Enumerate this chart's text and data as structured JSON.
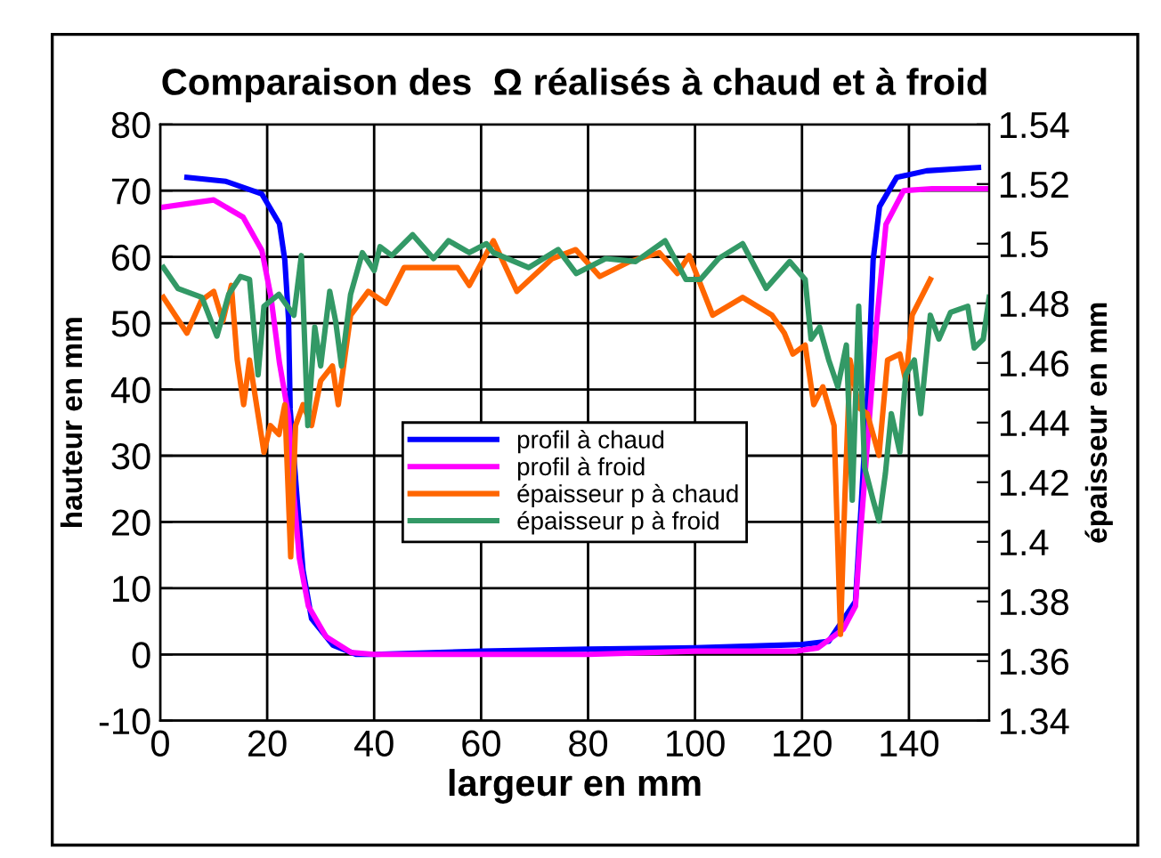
{
  "chart_data": {
    "type": "line",
    "title": "Comparaison des  Ω réalisés à chaud et à froid",
    "xlabel": "largeur en mm",
    "ylabel": "hauteur en mm",
    "y2label": "épaisseur en mm",
    "xlim": [
      0,
      155
    ],
    "xticks": [
      0,
      20,
      40,
      60,
      80,
      100,
      120,
      140
    ],
    "ylim": [
      -10,
      80
    ],
    "yticks": [
      -10,
      0,
      10,
      20,
      30,
      40,
      50,
      60,
      70,
      80
    ],
    "y2lim": [
      1.34,
      1.54
    ],
    "y2ticks": [
      1.34,
      1.36,
      1.38,
      1.4,
      1.42,
      1.44,
      1.46,
      1.48,
      1.5,
      1.52,
      1.54
    ],
    "grid": true,
    "legend": "center",
    "marker": "none",
    "line_style": "solid",
    "series": [
      {
        "name": "profil à chaud",
        "color": "#0000ff",
        "x": [
          5,
          12.3,
          19,
          22.3,
          23.3,
          24,
          24.3,
          25.6,
          26.7,
          28.3,
          32.3,
          36.7,
          40,
          60,
          80,
          100,
          120,
          125,
          130,
          131,
          132.3,
          133.3,
          134.5,
          137.7,
          143.3,
          153
        ],
        "values": [
          72,
          71.4,
          69.5,
          65,
          59.5,
          50.5,
          37,
          23.5,
          12.7,
          5.4,
          1.4,
          0,
          0,
          0.5,
          0.8,
          1,
          1.5,
          2,
          8,
          21.6,
          39.7,
          59.5,
          67.6,
          72,
          73,
          73.5
        ]
      },
      {
        "name": "profil à froid",
        "color": "#ff00ff",
        "x": [
          0.5,
          10,
          15.5,
          19,
          20.7,
          22.3,
          24,
          25,
          26,
          27.7,
          31,
          35.7,
          40,
          60,
          80,
          100,
          119,
          123,
          127.7,
          130,
          131,
          132.3,
          134,
          135.7,
          139,
          144.3,
          155
        ],
        "values": [
          67.5,
          68.6,
          66,
          61,
          54,
          44,
          36,
          24,
          14.6,
          7.3,
          2.7,
          0.3,
          0,
          0,
          0,
          0.5,
          0.5,
          1,
          3.8,
          7.3,
          19,
          32.4,
          50.5,
          64.9,
          70,
          70.3,
          70.3
        ]
      },
      {
        "name": "épaisseur p à chaud",
        "color": "#ff6600",
        "axis": "y2",
        "x": [
          0.6,
          5,
          7.7,
          10,
          11.7,
          13.3,
          14.4,
          15.6,
          16.7,
          19.4,
          20.6,
          22.2,
          23.3,
          24.4,
          25.3,
          26.7,
          28.3,
          30,
          32.2,
          33.3,
          35.6,
          38.9,
          42.2,
          45.6,
          50,
          55.6,
          57.8,
          62.3,
          66.7,
          73.3,
          77.7,
          82.2,
          87.8,
          93.3,
          96.7,
          98.9,
          103.3,
          108.9,
          114.4,
          116.7,
          118.3,
          120.6,
          122.2,
          123.9,
          126,
          127.2,
          128,
          129,
          130.6,
          132.2,
          134.4,
          136,
          138.3,
          139.4,
          140.6,
          144
        ],
        "values": [
          1.482,
          1.47,
          1.481,
          1.484,
          1.474,
          1.486,
          1.461,
          1.446,
          1.461,
          1.43,
          1.439,
          1.436,
          1.446,
          1.395,
          1.439,
          1.446,
          1.439,
          1.454,
          1.459,
          1.446,
          1.476,
          1.484,
          1.48,
          1.492,
          1.492,
          1.492,
          1.486,
          1.501,
          1.484,
          1.495,
          1.498,
          1.489,
          1.494,
          1.497,
          1.49,
          1.496,
          1.476,
          1.482,
          1.476,
          1.47,
          1.463,
          1.466,
          1.446,
          1.452,
          1.439,
          1.369,
          1.414,
          1.461,
          1.445,
          1.443,
          1.429,
          1.461,
          1.463,
          1.454,
          1.476,
          1.488
        ]
      },
      {
        "name": "épaisseur p à froid",
        "color": "#339966",
        "axis": "y2",
        "x": [
          0.6,
          3.3,
          7.8,
          10.6,
          12.8,
          15,
          16.7,
          18.3,
          19.4,
          22.2,
          25,
          26.4,
          27.6,
          28.9,
          30,
          31.7,
          32.8,
          33.9,
          35.6,
          37.8,
          40,
          41.1,
          43.3,
          47.2,
          51.1,
          53.9,
          57.8,
          61,
          62.3,
          68.9,
          74.4,
          77.8,
          83.3,
          88.9,
          94.4,
          98.3,
          101,
          104.4,
          108.9,
          113.3,
          117.7,
          120.6,
          121.7,
          123.3,
          125,
          126.7,
          128.3,
          129.4,
          130.6,
          131.7,
          133.3,
          134.4,
          135.6,
          136.7,
          138.3,
          139.4,
          141,
          142.2,
          144,
          145.6,
          147.8,
          151,
          152.2,
          153.9,
          155
        ],
        "values": [
          1.492,
          1.485,
          1.482,
          1.469,
          1.483,
          1.489,
          1.488,
          1.456,
          1.479,
          1.483,
          1.476,
          1.496,
          1.439,
          1.472,
          1.459,
          1.484,
          1.474,
          1.459,
          1.483,
          1.497,
          1.491,
          1.499,
          1.496,
          1.503,
          1.495,
          1.501,
          1.497,
          1.5,
          1.497,
          1.492,
          1.498,
          1.49,
          1.495,
          1.494,
          1.501,
          1.488,
          1.488,
          1.495,
          1.5,
          1.485,
          1.494,
          1.488,
          1.468,
          1.472,
          1.461,
          1.452,
          1.466,
          1.414,
          1.479,
          1.425,
          1.414,
          1.407,
          1.423,
          1.443,
          1.43,
          1.456,
          1.461,
          1.443,
          1.476,
          1.468,
          1.477,
          1.479,
          1.465,
          1.468,
          1.482
        ]
      }
    ]
  }
}
